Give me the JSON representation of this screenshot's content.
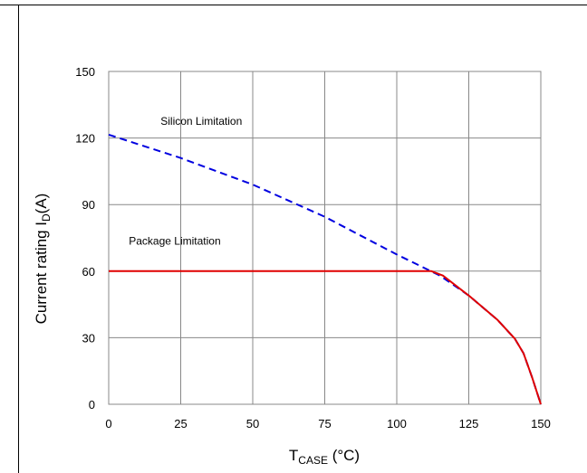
{
  "chart_data": {
    "type": "line",
    "xlabel": {
      "main": "T",
      "sub": "CASE",
      "rest": " (°C)"
    },
    "ylabel": {
      "main": "Current rating I",
      "sub": "D",
      "rest": "(A)"
    },
    "xlim": [
      0,
      150
    ],
    "ylim": [
      0,
      150
    ],
    "xticks": [
      0,
      25,
      50,
      75,
      100,
      125,
      150
    ],
    "yticks": [
      0,
      30,
      60,
      90,
      120,
      150
    ],
    "grid": true,
    "annotations": [
      {
        "text": "Silicon Limitation",
        "x": 18,
        "y": 126
      },
      {
        "text": "Package Limitation",
        "x": 7,
        "y": 72
      }
    ],
    "series": [
      {
        "color": "#0000e0",
        "style": "dashed",
        "x": [
          0,
          25,
          50,
          75,
          100,
          115,
          125,
          135,
          141,
          144,
          147,
          150
        ],
        "y": [
          121.5,
          111,
          99,
          84.5,
          67.5,
          58,
          49,
          38,
          29.5,
          23,
          12,
          0
        ]
      },
      {
        "color": "#e00000",
        "style": "solid",
        "x": [
          0,
          25,
          50,
          75,
          100,
          112,
          116,
          125,
          135,
          141,
          144,
          147,
          150
        ],
        "y": [
          60,
          60,
          60,
          60,
          60,
          60,
          58,
          49,
          38,
          29.5,
          23,
          12,
          0
        ]
      }
    ]
  }
}
